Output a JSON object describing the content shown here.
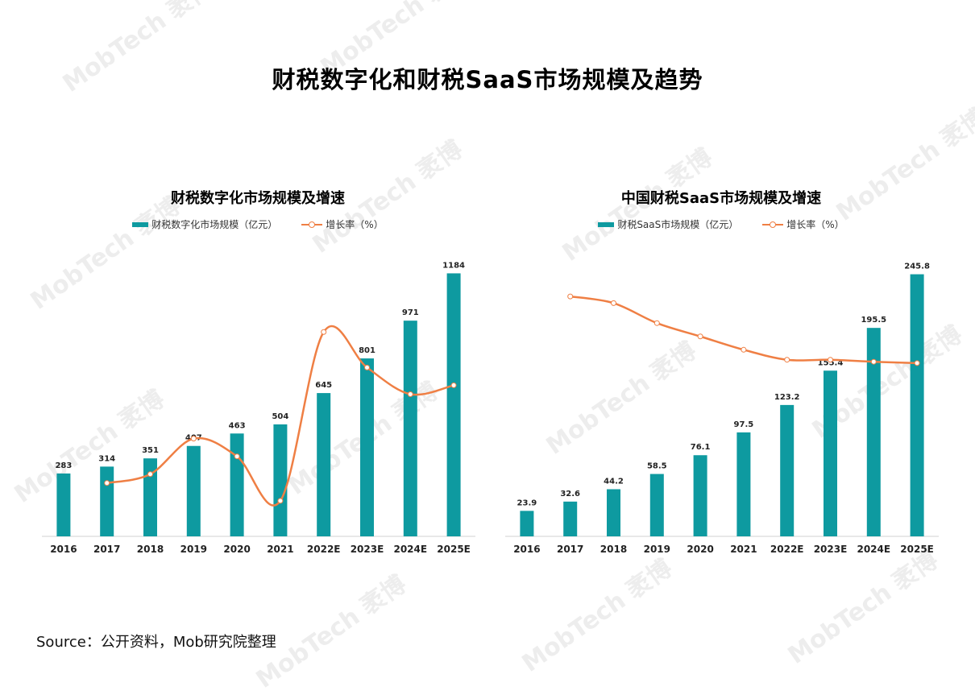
{
  "title": "财税数字化和财税SaaS市场规模及趋势",
  "source": "Source：公开资料，Mob研究院整理",
  "watermark": "MobTech 袤博",
  "colors": {
    "bar": "#0e9aa0",
    "line": "#ef7f44"
  },
  "chart_data": [
    {
      "type": "bar",
      "title": "财税数字化市场规模及增速",
      "legend_position": "top",
      "grid": false,
      "categories": [
        "2016",
        "2017",
        "2018",
        "2019",
        "2020",
        "2021",
        "2022E",
        "2023E",
        "2024E",
        "2025E"
      ],
      "series": [
        {
          "name": "财税数字化市场规模（亿元）",
          "type": "bar",
          "values": [
            283,
            314,
            351,
            407,
            463,
            504,
            645,
            801,
            971,
            1184
          ],
          "ylim": [
            0,
            1200
          ]
        },
        {
          "name": "增长率（%）",
          "type": "line",
          "smooth": true,
          "values": [
            null,
            11,
            12,
            16,
            14,
            9,
            28,
            24,
            21,
            22
          ],
          "ylim": [
            5,
            35
          ]
        }
      ]
    },
    {
      "type": "bar",
      "title": "中国财税SaaS市场规模及增速",
      "legend_position": "top",
      "grid": false,
      "categories": [
        "2016",
        "2017",
        "2018",
        "2019",
        "2020",
        "2021",
        "2022E",
        "2023E",
        "2024E",
        "2025E"
      ],
      "series": [
        {
          "name": "财税SaaS市场规模（亿元）",
          "type": "bar",
          "values": [
            23.9,
            32.6,
            44.2,
            58.5,
            76.1,
            97.5,
            123.2,
            155.4,
            195.5,
            245.8
          ],
          "ylim": [
            0,
            250
          ]
        },
        {
          "name": "增长率（%）",
          "type": "line",
          "smooth": true,
          "values": [
            null,
            36,
            35,
            32,
            30,
            28,
            26.5,
            26.5,
            26.2,
            26
          ],
          "ylim": [
            0,
            40
          ]
        }
      ]
    }
  ]
}
